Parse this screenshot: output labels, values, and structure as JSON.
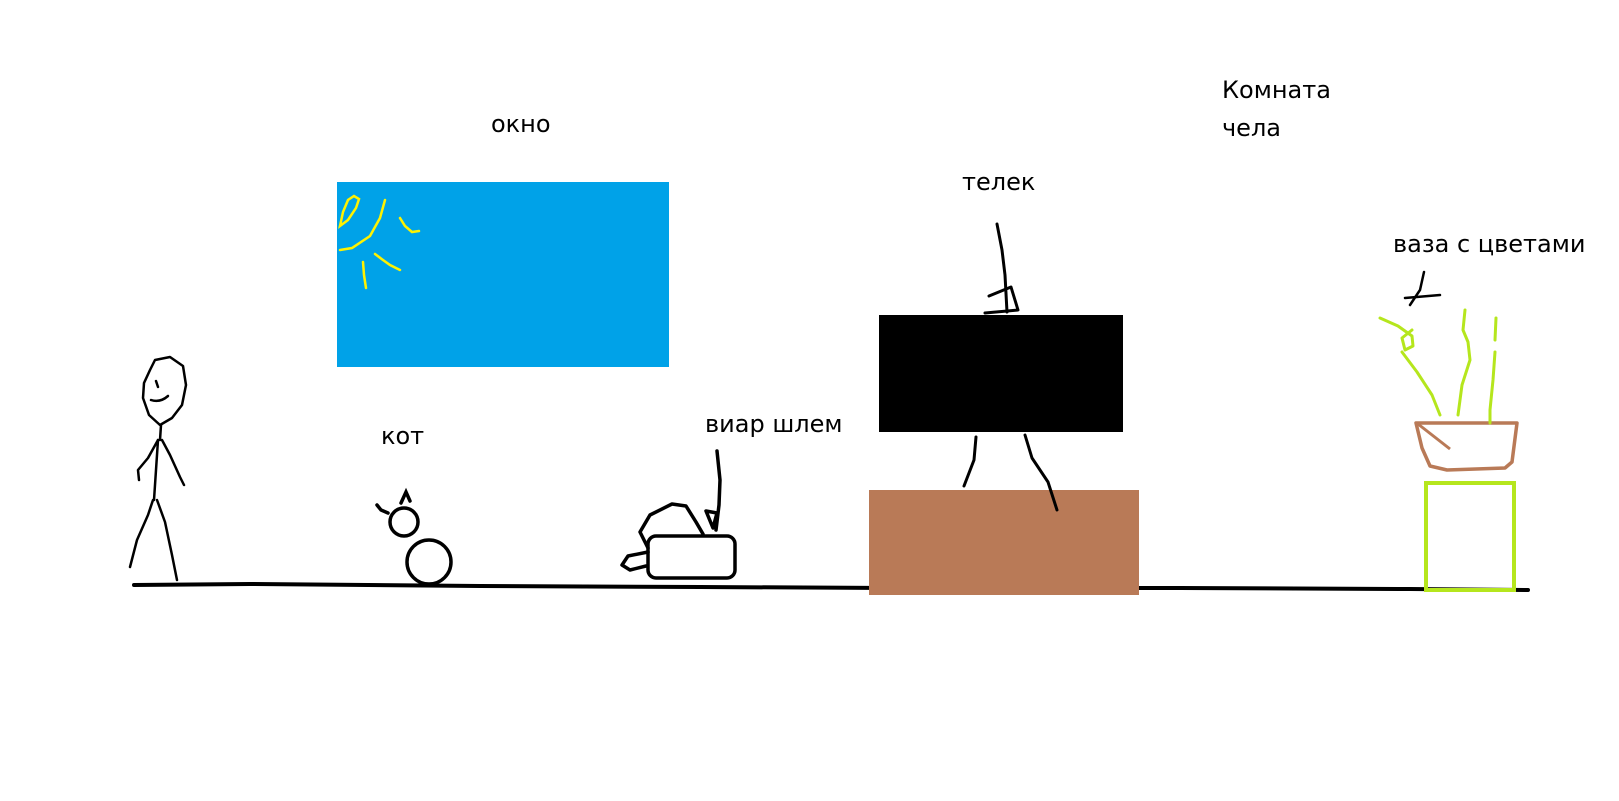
{
  "labels": {
    "room_line1": "Комната",
    "room_line2": "чела",
    "window": "окно",
    "tv": "телек",
    "vase": "ваза с цветами",
    "cat": "кот",
    "vr": "виар шлем"
  },
  "objects": {
    "person": "stick-figure",
    "sun": "sun-icon",
    "window": "window-rect",
    "cat": "cat-figure",
    "vr_headset": "vr-headset",
    "tv": "tv-screen",
    "cabinet": "tv-cabinet",
    "plant": "flowers",
    "pot": "flower-pot",
    "stand": "vase-stand"
  },
  "colors": {
    "window": "#00a2e8",
    "sun": "#fff200",
    "tv": "#000000",
    "cabinet": "#b97a57",
    "pot": "#b97a57",
    "plant": "#b5e61d",
    "stand": "#b5e61d",
    "ink": "#000000"
  }
}
